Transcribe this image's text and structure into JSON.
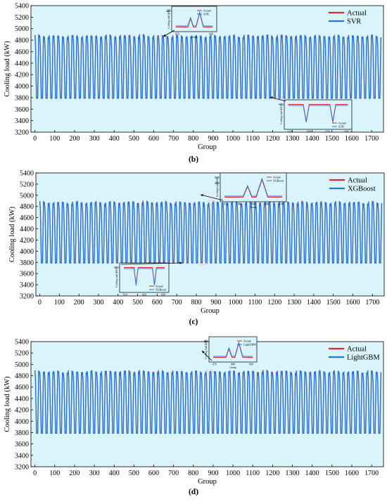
{
  "panels": [
    {
      "caption": "(b)"
    },
    {
      "caption": "(c)"
    },
    {
      "caption": "(d)"
    }
  ],
  "colors": {
    "plot_background": "#d9f4fa",
    "actual": "#e8262b",
    "predicted": "#2a72d6"
  },
  "chart_data": [
    {
      "type": "line",
      "panel": "(b)",
      "xlabel": "Group",
      "ylabel": "Cooling load (kW)",
      "xlim": [
        -20,
        1760
      ],
      "ylim": [
        3200,
        5400
      ],
      "xticks": [
        "0",
        "100",
        "200",
        "300",
        "400",
        "500",
        "600",
        "700",
        "800",
        "900",
        "1000",
        "1100",
        "1200",
        "1300",
        "1400",
        "1500",
        "1600",
        "1700"
      ],
      "yticks": [
        "3200",
        "3400",
        "3600",
        "3800",
        "4000",
        "4200",
        "4400",
        "4600",
        "4800",
        "5000",
        "5200",
        "5400"
      ],
      "legend_position": "top-right",
      "pattern": {
        "period": 24,
        "cycles": 73,
        "min": 3790,
        "max": 4870
      },
      "series": [
        {
          "name": "Actual",
          "color": "#e8262b"
        },
        {
          "name": "SVR",
          "color": "#2a72d6"
        }
      ],
      "insets": [
        {
          "location": "top-center",
          "ylabel": "Cooling load (kW)",
          "xlabel": "Group",
          "ticks": [
            "4800",
            "630",
            "640"
          ],
          "legend": [
            "Actual",
            "SVR"
          ],
          "points_to": [
            640,
            4850
          ]
        },
        {
          "location": "lower-right",
          "ylabel": "Cooling load (kW)",
          "xlabel": "",
          "ticks": [
            "3800",
            "1230",
            "1240",
            "1250",
            "1260"
          ],
          "legend": [
            "Actual",
            "SVR"
          ],
          "points_to": [
            1230,
            3790
          ]
        }
      ]
    },
    {
      "type": "line",
      "panel": "(c)",
      "xlabel": "Group",
      "ylabel": "Cooling load (kW)",
      "xlim": [
        -20,
        1760
      ],
      "ylim": [
        3200,
        5400
      ],
      "xticks": [
        "0",
        "100",
        "200",
        "300",
        "400",
        "500",
        "600",
        "700",
        "800",
        "900",
        "1000",
        "1100",
        "1200",
        "1300",
        "1400",
        "1500",
        "1600",
        "1700"
      ],
      "yticks": [
        "3200",
        "3400",
        "3600",
        "3800",
        "4000",
        "4200",
        "4400",
        "4600",
        "4800",
        "5000",
        "5200",
        "5400"
      ],
      "legend_position": "top-right",
      "pattern": {
        "period": 24,
        "cycles": 73,
        "min": 3790,
        "max": 4870
      },
      "series": [
        {
          "name": "Actual",
          "color": "#e8262b"
        },
        {
          "name": "XGBoost",
          "color": "#2a72d6"
        }
      ],
      "insets": [
        {
          "location": "top-center-right",
          "ylabel": "Cooling load (kW)",
          "xlabel": "Group",
          "ticks": [
            "5000",
            "4800",
            "870",
            "880",
            "890",
            "900",
            "910"
          ],
          "legend": [
            "Actual",
            "XGBoost"
          ],
          "points_to": [
            880,
            4870
          ]
        },
        {
          "location": "lower-center",
          "ylabel": "Cooling load (kW)",
          "xlabel": "",
          "ticks": [
            "3800",
            "810",
            "820",
            "830"
          ],
          "legend": [
            "Actual",
            "XGBoost"
          ],
          "points_to": [
            830,
            3790
          ]
        }
      ]
    },
    {
      "type": "line",
      "panel": "(d)",
      "xlabel": "Group",
      "ylabel": "Cooling load (kW)",
      "xlim": [
        -20,
        1760
      ],
      "ylim": [
        3200,
        5400
      ],
      "xticks": [
        "0",
        "100",
        "200",
        "300",
        "400",
        "500",
        "600",
        "700",
        "800",
        "900",
        "1000",
        "1100",
        "1200",
        "1300",
        "1400",
        "1500",
        "1600",
        "1700"
      ],
      "yticks": [
        "3200",
        "3400",
        "3600",
        "3800",
        "4000",
        "4200",
        "4400",
        "4600",
        "4800",
        "5000",
        "5200",
        "5400"
      ],
      "legend_position": "top-right",
      "pattern": {
        "period": 24,
        "cycles": 73,
        "min": 3790,
        "max": 4870
      },
      "series": [
        {
          "name": "Actual",
          "color": "#e8262b"
        },
        {
          "name": "LightGBM",
          "color": "#2a72d6"
        }
      ],
      "insets": [
        {
          "location": "top-center-right",
          "ylabel": "Cooling load (kW)",
          "xlabel": "Group",
          "ticks": [
            "4800",
            "870",
            "880",
            "890"
          ],
          "legend": [
            "Actual",
            "LightGBM"
          ],
          "points_to": [
            880,
            4870
          ]
        }
      ]
    }
  ]
}
